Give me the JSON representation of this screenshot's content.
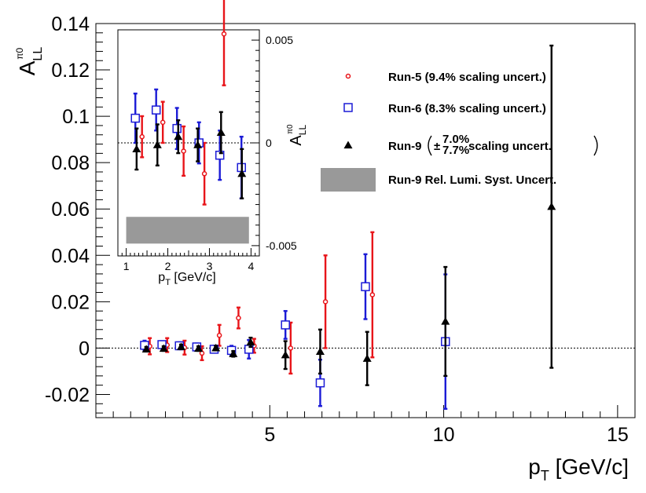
{
  "chart_data": [
    {
      "type": "scatter",
      "name": "main",
      "xlabel": {
        "main": "p",
        "sub": "T",
        "unit": " [GeV/c]"
      },
      "ylabel": {
        "main": "A",
        "sup": "π0",
        "sub": "LL"
      },
      "xlim": [
        0,
        15.5
      ],
      "ylim": [
        -0.03,
        0.14
      ],
      "x_ticks": [
        5,
        10,
        15
      ],
      "x_tick_labels": [
        "5",
        "10",
        "15"
      ],
      "y_ticks": [
        -0.02,
        0,
        0.02,
        0.04,
        0.06,
        0.08,
        0.1,
        0.12,
        0.14
      ],
      "y_tick_labels": [
        "-0.02",
        "0",
        "0.02",
        "0.04",
        "0.06",
        "0.08",
        "0.1",
        "0.12",
        "0.14"
      ],
      "zero_line": true,
      "series": [
        {
          "name": "Run-5 (9.4% scaling uncert.)",
          "color": "#e8151a",
          "marker": "open-circle",
          "points": [
            {
              "x": 1.55,
              "y": 0.0008,
              "err": 0.0035
            },
            {
              "x": 2.05,
              "y": 0.0013,
              "err": 0.003
            },
            {
              "x": 2.55,
              "y": 0.0002,
              "err": 0.003
            },
            {
              "x": 3.05,
              "y": -0.0022,
              "err": 0.003
            },
            {
              "x": 3.55,
              "y": 0.0055,
              "err": 0.0045
            },
            {
              "x": 4.1,
              "y": 0.013,
              "err": 0.0045
            },
            {
              "x": 4.55,
              "y": 0.001,
              "err": 0.003
            },
            {
              "x": 5.6,
              "y": 0.0,
              "err": 0.011
            },
            {
              "x": 6.6,
              "y": 0.02,
              "err": 0.02
            },
            {
              "x": 7.95,
              "y": 0.023,
              "err": 0.027
            }
          ]
        },
        {
          "name": "Run-6 (8.3% scaling uncert.)",
          "color": "#1b1bd6",
          "marker": "open-square",
          "points": [
            {
              "x": 1.4,
              "y": 0.0012,
              "err": 0.002
            },
            {
              "x": 1.9,
              "y": 0.0015,
              "err": 0.0015
            },
            {
              "x": 2.4,
              "y": 0.001,
              "err": 0.0015
            },
            {
              "x": 2.9,
              "y": 0.0005,
              "err": 0.0015
            },
            {
              "x": 3.4,
              "y": -0.0005,
              "err": 0.0015
            },
            {
              "x": 3.9,
              "y": -0.001,
              "err": 0.002
            },
            {
              "x": 4.4,
              "y": -0.0005,
              "err": 0.004
            },
            {
              "x": 5.45,
              "y": 0.01,
              "err": 0.006
            },
            {
              "x": 6.45,
              "y": -0.015,
              "err": 0.01
            },
            {
              "x": 7.75,
              "y": 0.0265,
              "err": 0.014
            },
            {
              "x": 10.05,
              "y": 0.0028,
              "err": 0.029
            }
          ]
        },
        {
          "name": "Run-9 (±7.0% / 7.7% scaling uncert.)",
          "color": "#000000",
          "marker": "filled-triangle",
          "points": [
            {
              "x": 1.45,
              "y": -0.0005,
              "err": 0.001
            },
            {
              "x": 1.95,
              "y": -0.0002,
              "err": 0.001
            },
            {
              "x": 2.45,
              "y": 0.0005,
              "err": 0.001
            },
            {
              "x": 2.95,
              "y": -0.0002,
              "err": 0.001
            },
            {
              "x": 3.45,
              "y": 0.0,
              "err": 0.001
            },
            {
              "x": 3.95,
              "y": -0.0025,
              "err": 0.0012
            },
            {
              "x": 4.45,
              "y": 0.0025,
              "err": 0.002
            },
            {
              "x": 5.45,
              "y": -0.003,
              "err": 0.006
            },
            {
              "x": 6.45,
              "y": -0.0015,
              "err": 0.0095
            },
            {
              "x": 7.8,
              "y": -0.0045,
              "err": 0.0115
            },
            {
              "x": 10.05,
              "y": 0.0115,
              "err": 0.0235
            },
            {
              "x": 13.1,
              "y": 0.061,
              "err": 0.0695
            }
          ]
        }
      ]
    },
    {
      "type": "scatter",
      "name": "inset",
      "xlabel": {
        "main": "p",
        "sub": "T",
        "unit": " [GeV/c]"
      },
      "ylabel": {
        "main": "A",
        "sup": "π0",
        "sub": "LL"
      },
      "xlim": [
        0.8,
        4.2
      ],
      "ylim": [
        -0.0055,
        0.0055
      ],
      "x_ticks": [
        1,
        2,
        3,
        4
      ],
      "x_tick_labels": [
        "1",
        "2",
        "3",
        "4"
      ],
      "y_ticks": [
        -0.005,
        0,
        0.005
      ],
      "y_tick_labels": [
        "-0.005",
        "0",
        "0.005"
      ],
      "zero_line": true,
      "syst_band": {
        "x0": 1.0,
        "x1": 3.95,
        "y0": -0.0049,
        "y1": -0.0036,
        "color": "#999999"
      },
      "series": [
        {
          "name": "Run-5",
          "color": "#e8151a",
          "marker": "open-circle",
          "points": [
            {
              "x": 1.38,
              "y": 0.0003,
              "err": 0.001
            },
            {
              "x": 1.88,
              "y": 0.001,
              "err": 0.001
            },
            {
              "x": 2.38,
              "y": -0.0004,
              "err": 0.0012
            },
            {
              "x": 2.88,
              "y": -0.0015,
              "err": 0.0015
            },
            {
              "x": 3.35,
              "y": 0.0053,
              "err": 0.0025
            }
          ]
        },
        {
          "name": "Run-6",
          "color": "#1b1bd6",
          "marker": "open-square",
          "points": [
            {
              "x": 1.22,
              "y": 0.0012,
              "err": 0.0012
            },
            {
              "x": 1.72,
              "y": 0.0016,
              "err": 0.001
            },
            {
              "x": 2.22,
              "y": 0.0007,
              "err": 0.001
            },
            {
              "x": 2.75,
              "y": 0.0,
              "err": 0.001
            },
            {
              "x": 3.25,
              "y": -0.0006,
              "err": 0.0012
            },
            {
              "x": 3.77,
              "y": -0.0012,
              "err": 0.0015
            }
          ]
        },
        {
          "name": "Run-9",
          "color": "#000000",
          "marker": "filled-triangle",
          "points": [
            {
              "x": 1.25,
              "y": -0.0003,
              "err": 0.001
            },
            {
              "x": 1.75,
              "y": -0.0001,
              "err": 0.001
            },
            {
              "x": 2.25,
              "y": 0.0003,
              "err": 0.0008
            },
            {
              "x": 2.72,
              "y": -0.0001,
              "err": 0.0008
            },
            {
              "x": 3.28,
              "y": 0.0005,
              "err": 0.001
            },
            {
              "x": 3.78,
              "y": -0.0015,
              "err": 0.0012
            }
          ]
        }
      ]
    }
  ],
  "legend": {
    "items": [
      {
        "id": "run5",
        "marker": "open-circle",
        "color": "#e8151a",
        "text": "Run-5 (9.4% scaling uncert.)"
      },
      {
        "id": "run6",
        "marker": "open-square",
        "color": "#1b1bd6",
        "text": "Run-6 (8.3% scaling uncert.)"
      },
      {
        "id": "run9",
        "marker": "filled-triangle",
        "color": "#000000",
        "prefix": "Run-9",
        "pm": "±",
        "upper": "7.0%",
        "lower": "7.7%",
        "suffix": " scaling uncert."
      },
      {
        "id": "lumi",
        "marker": "gray-band",
        "color": "#999999",
        "text": "Run-9 Rel. Lumi. Syst. Uncert."
      }
    ]
  }
}
